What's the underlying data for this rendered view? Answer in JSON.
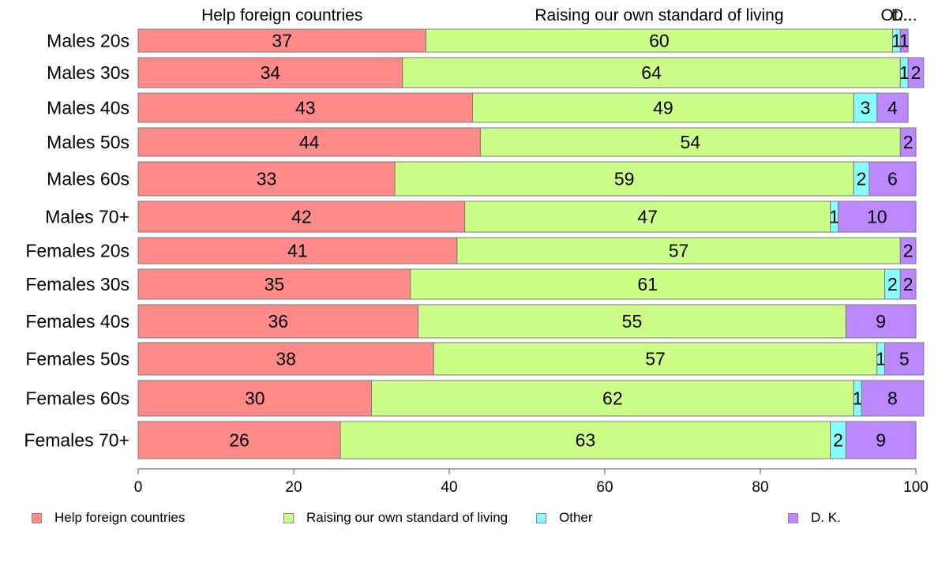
{
  "chart_data": {
    "type": "bar",
    "orientation": "horizontal",
    "stacked": true,
    "categories": [
      "Males 20s",
      "Males 30s",
      "Males 40s",
      "Males 50s",
      "Males 60s",
      "Males 70+",
      "Females 20s",
      "Females 30s",
      "Females 40s",
      "Females 50s",
      "Females 60s",
      "Females 70+"
    ],
    "series": [
      {
        "name": "Help foreign countries",
        "color": "#FF8A8A",
        "values": [
          37,
          34,
          43,
          44,
          33,
          42,
          41,
          35,
          36,
          38,
          30,
          26
        ]
      },
      {
        "name": "Raising our own standard of living",
        "color": "#CCFF88",
        "values": [
          60,
          64,
          49,
          54,
          59,
          47,
          57,
          61,
          55,
          57,
          62,
          63
        ]
      },
      {
        "name": "Other",
        "color": "#88FFFF",
        "values": [
          1,
          1,
          3,
          0,
          2,
          1,
          0,
          2,
          0,
          1,
          1,
          2
        ]
      },
      {
        "name": "D. K.",
        "color": "#BB88FF",
        "values": [
          1,
          2,
          4,
          2,
          6,
          10,
          2,
          2,
          9,
          5,
          8,
          9
        ]
      }
    ],
    "top_labels": [
      "Help foreign countries",
      "Raising our own standard of living",
      "Ot...",
      "D..."
    ],
    "xlim": [
      0,
      100
    ],
    "xticks": [
      "0",
      "20",
      "40",
      "60",
      "80",
      "100"
    ],
    "grid": false,
    "legend_position": "bottom"
  }
}
